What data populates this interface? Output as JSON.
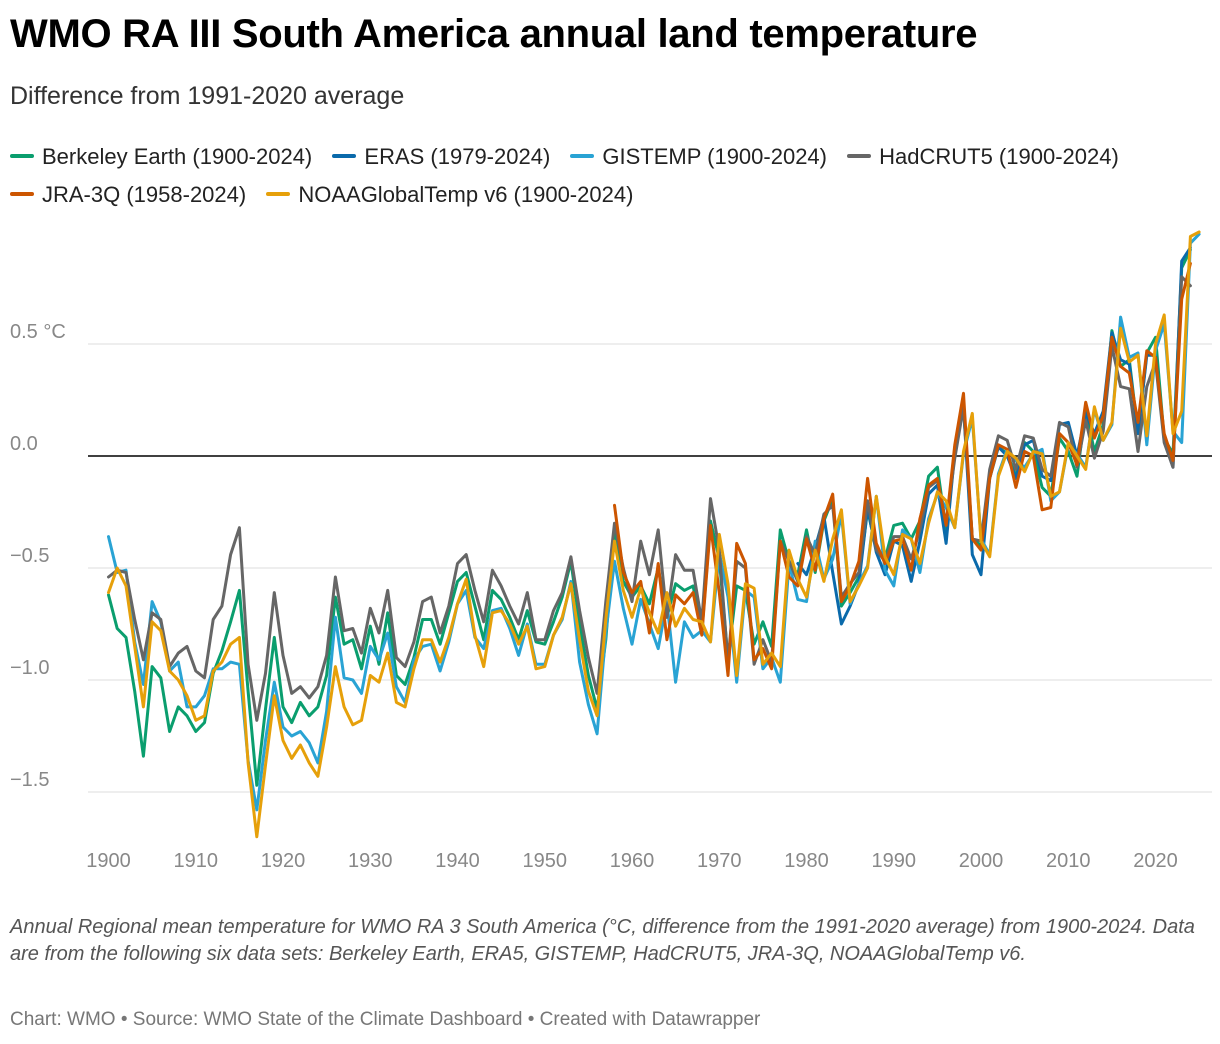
{
  "title": "WMO RA III South America annual land temperature",
  "subtitle": "Difference from 1991-2020 average",
  "legend": [
    {
      "label": "Berkeley Earth (1900-2024)",
      "color": "#0a9e6e"
    },
    {
      "label": "ERAS (1979-2024)",
      "color": "#0a6aab"
    },
    {
      "label": "GISTEMP (1900-2024)",
      "color": "#29a3d4"
    },
    {
      "label": "HadCRUT5 (1900-2024)",
      "color": "#666666"
    },
    {
      "label": "JRA-3Q (1958-2024)",
      "color": "#cc5500"
    },
    {
      "label": "NOAAGlobalTemp v6 (1900-2024)",
      "color": "#e6a00a"
    }
  ],
  "note": "Annual Regional mean temperature for WMO RA 3 South America (°C, difference from the 1991-2020 average) from 1900-2024. Data are from the following six data sets: Berkeley Earth, ERA5, GISTEMP, HadCRUT5, JRA-3Q, NOAAGlobalTemp v6.",
  "footer": "Chart: WMO • Source: WMO State of the Climate Dashboard • Created with Datawrapper",
  "chart_data": {
    "type": "line",
    "title": "WMO RA III South America annual land temperature",
    "subtitle": "Difference from 1991-2020 average",
    "xlabel": "",
    "ylabel": "",
    "xlim": [
      1899,
      2025
    ],
    "ylim": [
      -1.75,
      1.0
    ],
    "x_ticks": [
      1900,
      1910,
      1920,
      1930,
      1940,
      1950,
      1960,
      1970,
      1980,
      1990,
      2000,
      2010,
      2020
    ],
    "y_ticks": [
      {
        "value": 0.5,
        "label": "0.5 °C"
      },
      {
        "value": 0.0,
        "label": "0.0"
      },
      {
        "value": -0.5,
        "label": "−0.5"
      },
      {
        "value": -1.0,
        "label": "−1.0"
      },
      {
        "value": -1.5,
        "label": "−1.5"
      }
    ],
    "grid": true,
    "legend_position": "top",
    "series": [
      {
        "name": "Berkeley Earth (1900-2024)",
        "color": "#0a9e6e",
        "start": 1900,
        "values": [
          -0.62,
          -0.77,
          -0.81,
          -1.05,
          -1.34,
          -0.94,
          -0.99,
          -1.23,
          -1.12,
          -1.16,
          -1.23,
          -1.19,
          -0.97,
          -0.87,
          -0.74,
          -0.6,
          -1.05,
          -1.47,
          -1.13,
          -0.81,
          -1.12,
          -1.19,
          -1.1,
          -1.16,
          -1.12,
          -0.98,
          -0.63,
          -0.84,
          -0.82,
          -0.95,
          -0.76,
          -0.93,
          -0.7,
          -0.98,
          -1.02,
          -0.9,
          -0.73,
          -0.73,
          -0.84,
          -0.7,
          -0.56,
          -0.52,
          -0.67,
          -0.82,
          -0.6,
          -0.64,
          -0.72,
          -0.82,
          -0.69,
          -0.83,
          -0.84,
          -0.74,
          -0.63,
          -0.47,
          -0.75,
          -0.98,
          -1.13,
          -0.82,
          -0.34,
          -0.56,
          -0.63,
          -0.58,
          -0.66,
          -0.5,
          -0.72,
          -0.57,
          -0.6,
          -0.58,
          -0.79,
          -0.29,
          -0.46,
          -0.91,
          -0.58,
          -0.6,
          -0.84,
          -0.74,
          -0.85,
          -0.33,
          -0.47,
          -0.53,
          -0.33,
          -0.52,
          -0.29,
          -0.19,
          -0.67,
          -0.61,
          -0.54,
          -0.24,
          -0.42,
          -0.46,
          -0.31,
          -0.3,
          -0.37,
          -0.29,
          -0.09,
          -0.05,
          -0.33,
          0.04,
          0.22,
          -0.37,
          -0.4,
          -0.08,
          0.04,
          0.01,
          -0.09,
          0.06,
          0.02,
          -0.14,
          -0.18,
          0.08,
          0.02,
          -0.09,
          0.21,
          0.02,
          0.14,
          0.56,
          0.4,
          0.43,
          0.1,
          0.46,
          0.53,
          0.08,
          0.01,
          0.84,
          0.92
        ]
      },
      {
        "name": "ERAS (1979-2024)",
        "color": "#0a6aab",
        "start": 1979,
        "values": [
          -0.48,
          -0.53,
          -0.41,
          -0.27,
          -0.52,
          -0.75,
          -0.67,
          -0.57,
          -0.23,
          -0.43,
          -0.53,
          -0.38,
          -0.4,
          -0.56,
          -0.38,
          -0.17,
          -0.13,
          -0.39,
          0.02,
          0.22,
          -0.44,
          -0.53,
          -0.1,
          0.04,
          0.0,
          -0.1,
          0.05,
          0.07,
          -0.09,
          -0.11,
          0.14,
          0.15,
          0.0,
          0.19,
          0.1,
          0.2,
          0.55,
          0.43,
          0.41,
          0.1,
          0.45,
          0.45,
          0.07,
          -0.05,
          0.87,
          0.93
        ]
      },
      {
        "name": "GISTEMP (1900-2024)",
        "color": "#29a3d4",
        "start": 1900,
        "values": [
          -0.36,
          -0.52,
          -0.51,
          -0.83,
          -1.02,
          -0.65,
          -0.74,
          -0.96,
          -0.92,
          -1.12,
          -1.12,
          -1.07,
          -0.95,
          -0.95,
          -0.92,
          -0.93,
          -1.36,
          -1.58,
          -1.27,
          -1.01,
          -1.21,
          -1.25,
          -1.23,
          -1.28,
          -1.37,
          -1.14,
          -0.72,
          -0.99,
          -1.0,
          -1.06,
          -0.85,
          -0.91,
          -0.79,
          -1.03,
          -1.1,
          -0.91,
          -0.85,
          -0.84,
          -0.96,
          -0.83,
          -0.66,
          -0.6,
          -0.81,
          -0.86,
          -0.69,
          -0.68,
          -0.77,
          -0.89,
          -0.75,
          -0.93,
          -0.93,
          -0.8,
          -0.73,
          -0.56,
          -0.92,
          -1.11,
          -1.24,
          -0.79,
          -0.47,
          -0.68,
          -0.84,
          -0.64,
          -0.75,
          -0.86,
          -0.65,
          -1.01,
          -0.74,
          -0.81,
          -0.78,
          -0.83,
          -0.43,
          -0.63,
          -1.01,
          -0.6,
          -0.63,
          -0.95,
          -0.9,
          -1.01,
          -0.48,
          -0.64,
          -0.65,
          -0.38,
          -0.55,
          -0.46,
          -0.26,
          -0.66,
          -0.57,
          -0.49,
          -0.18,
          -0.51,
          -0.58,
          -0.33,
          -0.37,
          -0.52,
          -0.28,
          -0.17,
          -0.23,
          -0.32,
          0.01,
          0.17,
          -0.37,
          -0.44,
          -0.08,
          0.03,
          -0.02,
          -0.05,
          0.01,
          0.03,
          -0.2,
          -0.16,
          0.05,
          0.01,
          -0.05,
          0.21,
          0.07,
          0.14,
          0.62,
          0.44,
          0.46,
          0.05,
          0.47,
          0.59,
          0.11,
          0.06,
          0.95,
          0.99
        ]
      },
      {
        "name": "HadCRUT5 (1900-2024)",
        "color": "#666666",
        "start": 1900,
        "values": [
          -0.54,
          -0.51,
          -0.52,
          -0.73,
          -0.91,
          -0.7,
          -0.73,
          -0.94,
          -0.88,
          -0.85,
          -0.96,
          -0.99,
          -0.73,
          -0.67,
          -0.44,
          -0.32,
          -0.93,
          -1.18,
          -0.97,
          -0.61,
          -0.89,
          -1.06,
          -1.03,
          -1.08,
          -1.03,
          -0.89,
          -0.54,
          -0.78,
          -0.77,
          -0.88,
          -0.68,
          -0.79,
          -0.6,
          -0.9,
          -0.94,
          -0.83,
          -0.65,
          -0.63,
          -0.79,
          -0.67,
          -0.48,
          -0.44,
          -0.6,
          -0.74,
          -0.51,
          -0.58,
          -0.67,
          -0.75,
          -0.61,
          -0.82,
          -0.82,
          -0.69,
          -0.61,
          -0.45,
          -0.69,
          -0.9,
          -1.06,
          -0.65,
          -0.3,
          -0.5,
          -0.65,
          -0.38,
          -0.53,
          -0.33,
          -0.72,
          -0.44,
          -0.51,
          -0.51,
          -0.74,
          -0.19,
          -0.42,
          -0.92,
          -0.47,
          -0.5,
          -0.93,
          -0.82,
          -0.92,
          -0.38,
          -0.47,
          -0.56,
          -0.36,
          -0.44,
          -0.26,
          -0.22,
          -0.63,
          -0.57,
          -0.52,
          -0.2,
          -0.42,
          -0.47,
          -0.36,
          -0.36,
          -0.46,
          -0.33,
          -0.14,
          -0.11,
          -0.3,
          -0.01,
          0.22,
          -0.37,
          -0.38,
          -0.06,
          0.09,
          0.07,
          -0.06,
          0.09,
          0.08,
          -0.06,
          -0.09,
          0.15,
          0.13,
          -0.05,
          0.16,
          -0.01,
          0.11,
          0.49,
          0.31,
          0.3,
          0.02,
          0.31,
          0.42,
          0.06,
          -0.05,
          0.8,
          0.76
        ]
      },
      {
        "name": "JRA-3Q (1958-2024)",
        "color": "#cc5500",
        "start": 1958,
        "values": [
          -0.22,
          -0.52,
          -0.61,
          -0.56,
          -0.79,
          -0.48,
          -0.82,
          -0.62,
          -0.66,
          -0.61,
          -0.8,
          -0.31,
          -0.61,
          -0.98,
          -0.39,
          -0.48,
          -0.91,
          -0.86,
          -0.95,
          -0.38,
          -0.54,
          -0.58,
          -0.37,
          -0.51,
          -0.28,
          -0.17,
          -0.65,
          -0.58,
          -0.47,
          -0.1,
          -0.39,
          -0.48,
          -0.38,
          -0.37,
          -0.51,
          -0.28,
          -0.13,
          -0.1,
          -0.31,
          0.05,
          0.28,
          -0.37,
          -0.42,
          -0.1,
          0.05,
          0.03,
          -0.14,
          0.02,
          0.0,
          -0.24,
          -0.23,
          0.1,
          0.06,
          -0.04,
          0.24,
          0.08,
          0.18,
          0.53,
          0.4,
          0.37,
          0.15,
          0.47,
          0.44,
          0.1,
          -0.02,
          0.7,
          0.86
        ]
      },
      {
        "name": "NOAAGlobalTemp v6 (1900-2024)",
        "color": "#e6a00a",
        "start": 1900,
        "values": [
          -0.61,
          -0.5,
          -0.58,
          -0.85,
          -1.12,
          -0.74,
          -0.78,
          -0.96,
          -1.0,
          -1.07,
          -1.18,
          -1.16,
          -0.96,
          -0.92,
          -0.84,
          -0.81,
          -1.37,
          -1.7,
          -1.38,
          -1.07,
          -1.27,
          -1.35,
          -1.29,
          -1.37,
          -1.43,
          -1.21,
          -0.94,
          -1.12,
          -1.2,
          -1.18,
          -0.98,
          -1.01,
          -0.88,
          -1.1,
          -1.12,
          -0.95,
          -0.82,
          -0.82,
          -0.92,
          -0.81,
          -0.66,
          -0.55,
          -0.8,
          -0.94,
          -0.7,
          -0.69,
          -0.75,
          -0.84,
          -0.76,
          -0.95,
          -0.94,
          -0.8,
          -0.72,
          -0.57,
          -0.82,
          -1.05,
          -1.16,
          -0.73,
          -0.38,
          -0.6,
          -0.72,
          -0.59,
          -0.7,
          -0.79,
          -0.61,
          -0.76,
          -0.68,
          -0.73,
          -0.74,
          -0.83,
          -0.35,
          -0.57,
          -0.98,
          -0.57,
          -0.59,
          -0.93,
          -0.88,
          -0.94,
          -0.42,
          -0.55,
          -0.63,
          -0.42,
          -0.56,
          -0.37,
          -0.24,
          -0.65,
          -0.58,
          -0.5,
          -0.18,
          -0.45,
          -0.53,
          -0.35,
          -0.37,
          -0.48,
          -0.3,
          -0.16,
          -0.2,
          -0.32,
          0.02,
          0.19,
          -0.38,
          -0.45,
          -0.09,
          0.02,
          -0.01,
          -0.07,
          0.02,
          0.01,
          -0.18,
          -0.16,
          0.06,
          0.0,
          -0.06,
          0.22,
          0.07,
          0.15,
          0.57,
          0.42,
          0.45,
          0.09,
          0.5,
          0.63,
          0.1,
          0.2,
          0.98,
          1.0
        ]
      }
    ]
  }
}
